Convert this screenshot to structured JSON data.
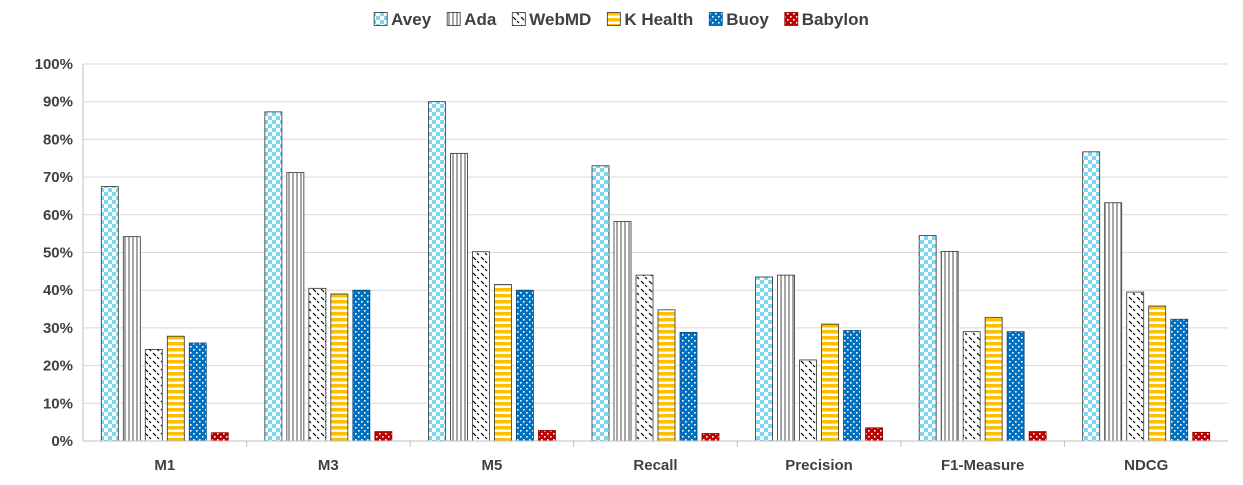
{
  "chart_data": {
    "type": "bar",
    "categories": [
      "M1",
      "M3",
      "M5",
      "Recall",
      "Precision",
      "F1-Measure",
      "NDCG"
    ],
    "series": [
      {
        "name": "Avey",
        "values": [
          67.5,
          87.3,
          90.0,
          73.0,
          43.5,
          54.5,
          76.7
        ],
        "color": "#7dd6f2",
        "pattern": "checker"
      },
      {
        "name": "Ada",
        "values": [
          54.2,
          71.2,
          76.3,
          58.2,
          44.0,
          50.3,
          63.2
        ],
        "color": "#a6a6a6",
        "pattern": "vertical-stripes"
      },
      {
        "name": "WebMD",
        "values": [
          24.3,
          40.5,
          50.2,
          44.0,
          21.5,
          29.0,
          39.5
        ],
        "color": "#000000",
        "pattern": "dashed-diagonal"
      },
      {
        "name": "K Health",
        "values": [
          27.8,
          39.0,
          41.5,
          34.8,
          31.0,
          32.8,
          35.8
        ],
        "color": "#ffc000",
        "pattern": "horizontal-stripes"
      },
      {
        "name": "Buoy",
        "values": [
          26.0,
          40.0,
          40.0,
          28.8,
          29.3,
          29.0,
          32.3
        ],
        "color": "#0070c0",
        "pattern": "dots"
      },
      {
        "name": "Babylon",
        "values": [
          2.2,
          2.5,
          2.8,
          2.0,
          3.5,
          2.5,
          2.3
        ],
        "color": "#c00000",
        "pattern": "dots"
      }
    ],
    "y_ticks": [
      "0%",
      "10%",
      "20%",
      "30%",
      "40%",
      "50%",
      "60%",
      "70%",
      "80%",
      "90%",
      "100%"
    ],
    "ylim": [
      0,
      100
    ],
    "grid": true,
    "legend_position": "top-center",
    "title": "",
    "xlabel": "",
    "ylabel": ""
  }
}
